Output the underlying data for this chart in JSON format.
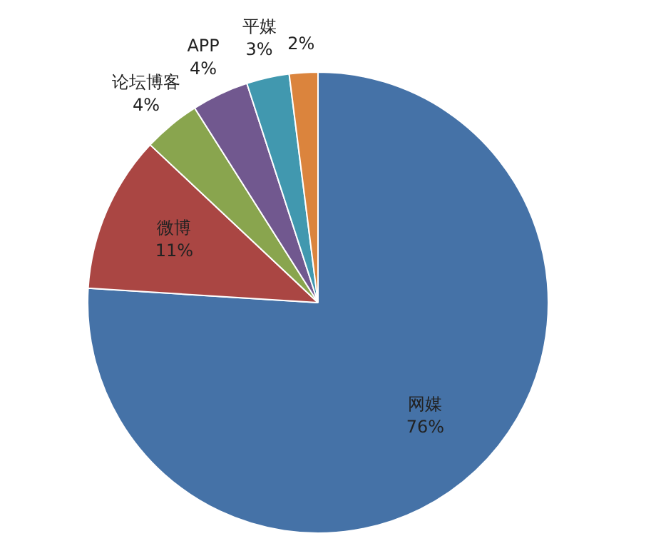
{
  "chart_data": {
    "type": "pie",
    "categories": [
      "网媒",
      "微博",
      "论坛博客",
      "APP",
      "平媒",
      null
    ],
    "values": [
      76,
      11,
      4,
      4,
      3,
      2
    ],
    "value_labels": [
      "76%",
      "11%",
      "4%",
      "4%",
      "3%",
      "2%"
    ],
    "colors": [
      "#4572a7",
      "#aa4643",
      "#89a54e",
      "#71588f",
      "#4198af",
      "#db843d"
    ],
    "legend": false
  }
}
